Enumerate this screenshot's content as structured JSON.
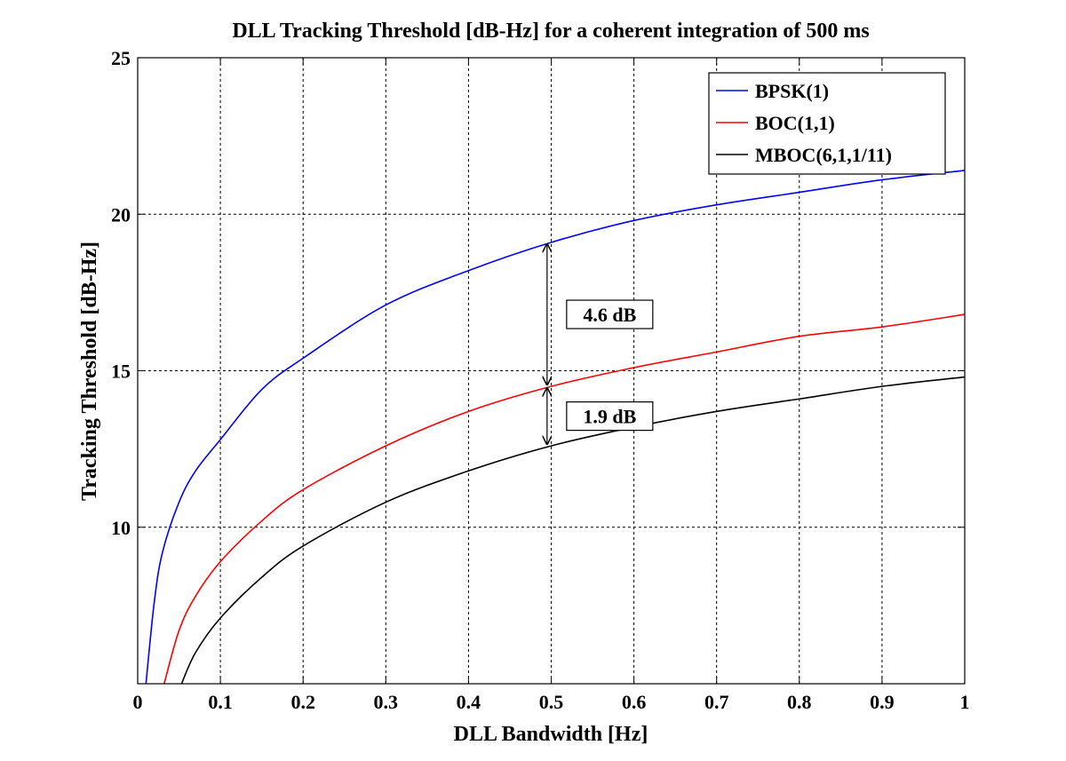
{
  "chart_data": {
    "type": "line",
    "title": "DLL Tracking Threshold [dB-Hz] for a coherent integration of 500 ms",
    "xlabel": "DLL Bandwidth [Hz]",
    "ylabel": "Tracking Threshold [dB-Hz]",
    "xlim": [
      0,
      1
    ],
    "ylim": [
      5,
      25
    ],
    "xticks": [
      0,
      0.1,
      0.2,
      0.3,
      0.4,
      0.5,
      0.6,
      0.7,
      0.8,
      0.9,
      1
    ],
    "xtick_labels": [
      "0",
      "0.1",
      "0.2",
      "0.3",
      "0.4",
      "0.5",
      "0.6",
      "0.7",
      "0.8",
      "0.9",
      "1"
    ],
    "yticks": [
      10,
      15,
      20,
      25
    ],
    "ytick_labels": [
      "10",
      "15",
      "20",
      "25"
    ],
    "grid": true,
    "legend_position": "top-right",
    "series": [
      {
        "name": "BPSK(1)",
        "color": "#0000ff",
        "x": [
          0.01,
          0.02,
          0.03,
          0.05,
          0.07,
          0.1,
          0.15,
          0.2,
          0.3,
          0.4,
          0.5,
          0.6,
          0.7,
          0.8,
          0.9,
          1.0
        ],
        "y": [
          5.0,
          7.6,
          9.2,
          10.8,
          11.8,
          12.8,
          14.4,
          15.4,
          17.1,
          18.2,
          19.1,
          19.8,
          20.3,
          20.7,
          21.1,
          21.4
        ]
      },
      {
        "name": "BOC(1,1)",
        "color": "#ff0000",
        "x": [
          0.032,
          0.05,
          0.07,
          0.1,
          0.15,
          0.2,
          0.3,
          0.4,
          0.5,
          0.6,
          0.7,
          0.8,
          0.9,
          1.0
        ],
        "y": [
          5.0,
          6.7,
          7.8,
          8.9,
          10.2,
          11.2,
          12.6,
          13.7,
          14.5,
          15.1,
          15.6,
          16.1,
          16.4,
          16.8
        ]
      },
      {
        "name": "MBOC(6,1,1/11)",
        "color": "#000000",
        "x": [
          0.053,
          0.07,
          0.1,
          0.15,
          0.2,
          0.3,
          0.4,
          0.5,
          0.6,
          0.7,
          0.8,
          0.9,
          1.0
        ],
        "y": [
          5.0,
          6.0,
          7.1,
          8.4,
          9.4,
          10.8,
          11.8,
          12.6,
          13.2,
          13.7,
          14.1,
          14.5,
          14.8
        ]
      }
    ],
    "annotations": [
      {
        "text": "4.6 dB",
        "x": 0.495,
        "y_from": 14.5,
        "y_to": 19.1
      },
      {
        "text": "1.9 dB",
        "x": 0.495,
        "y_from": 12.6,
        "y_to": 14.5
      }
    ]
  }
}
